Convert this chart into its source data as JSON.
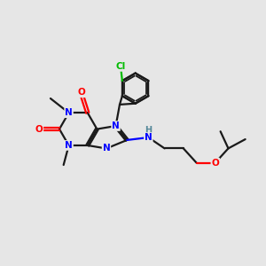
{
  "background_color": "#e6e6e6",
  "atom_colors": {
    "N": "#0000ff",
    "O": "#ff0000",
    "Cl": "#00bb00",
    "H": "#558899"
  },
  "bond_color": "#1a1a1a",
  "figsize": [
    3.0,
    3.0
  ],
  "dpi": 100
}
